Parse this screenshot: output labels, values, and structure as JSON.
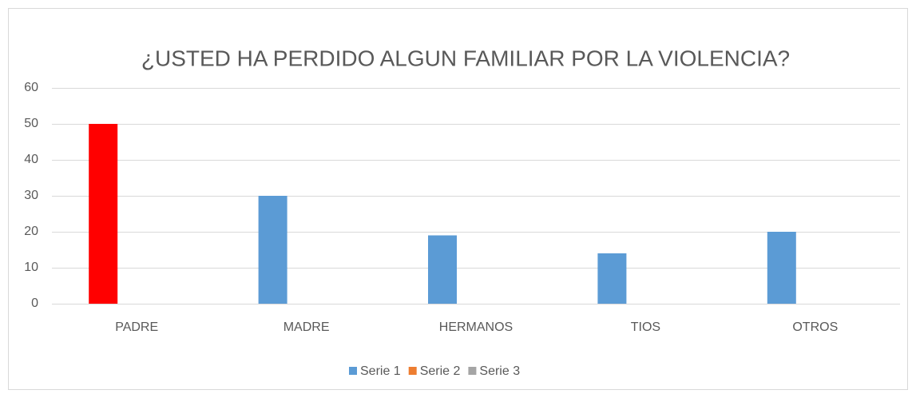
{
  "chart_data": {
    "type": "bar",
    "title": "¿USTED HA  PERDIDO ALGUN FAMILIAR POR LA VIOLENCIA?",
    "categories": [
      "PADRE",
      "MADRE",
      "HERMANOS",
      "TIOS",
      "OTROS"
    ],
    "series": [
      {
        "name": "Serie 1",
        "color": "#5b9bd5",
        "colors": [
          "#ff0000",
          "#5b9bd5",
          "#5b9bd5",
          "#5b9bd5",
          "#5b9bd5"
        ],
        "values": [
          50,
          30,
          19,
          14,
          20
        ]
      },
      {
        "name": "Serie 2",
        "color": "#ed7d31",
        "values": [
          null,
          null,
          null,
          null,
          null
        ]
      },
      {
        "name": "Serie 3",
        "color": "#a5a5a5",
        "values": [
          null,
          null,
          null,
          null,
          null
        ]
      }
    ],
    "ylim": [
      0,
      60
    ],
    "yticks": [
      0,
      10,
      20,
      30,
      40,
      50,
      60
    ],
    "grid": true,
    "legend": "bottom"
  }
}
